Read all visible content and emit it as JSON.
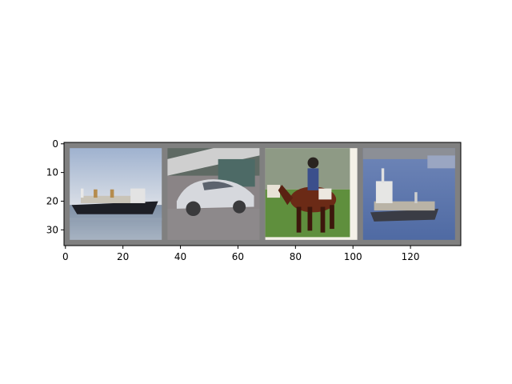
{
  "chart_data": {
    "type": "image-grid",
    "title": "",
    "xlabel": "",
    "ylabel": "",
    "xlim": [
      -0.5,
      137.5
    ],
    "ylim": [
      35.5,
      -0.5
    ],
    "x_ticks": [
      0,
      20,
      40,
      60,
      80,
      100,
      120
    ],
    "y_ticks": [
      0,
      10,
      20,
      30
    ],
    "grid": false,
    "background_color": "#808080",
    "tiles": [
      {
        "subject": "ship",
        "x_start": 2,
        "x_end": 34,
        "y_start": 2,
        "y_end": 34
      },
      {
        "subject": "car",
        "x_start": 36,
        "x_end": 68,
        "y_start": 2,
        "y_end": 34
      },
      {
        "subject": "horse-and-rider",
        "x_start": 70,
        "x_end": 102,
        "y_start": 2,
        "y_end": 34
      },
      {
        "subject": "ship",
        "x_start": 104,
        "x_end": 136,
        "y_start": 2,
        "y_end": 34
      }
    ]
  }
}
